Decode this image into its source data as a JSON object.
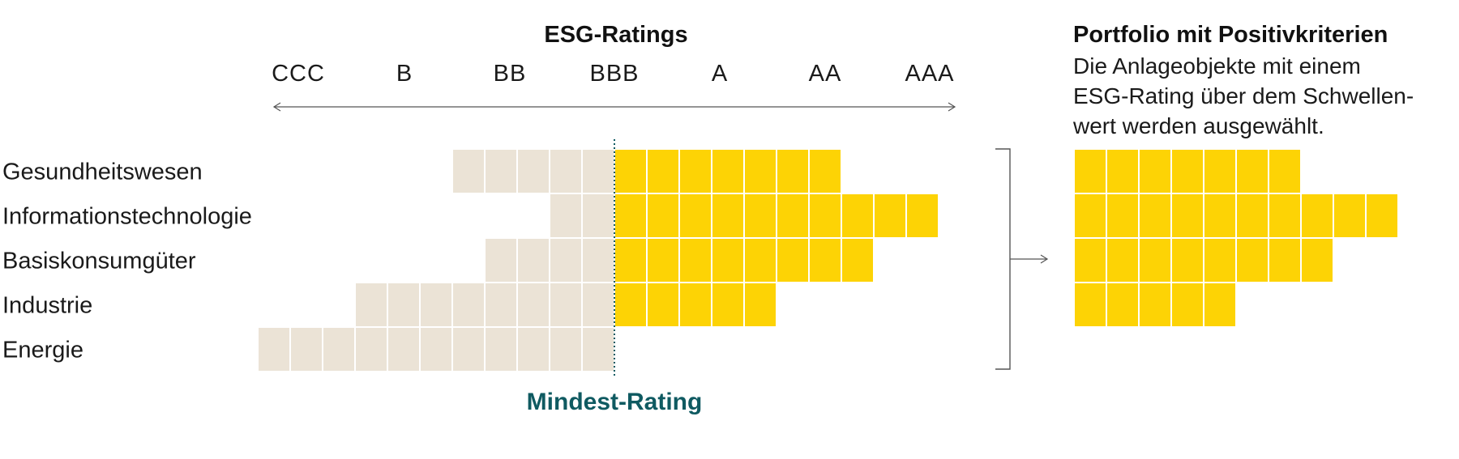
{
  "title": "ESG-Ratings",
  "ratings": [
    "CCC",
    "B",
    "BB",
    "BBB",
    "A",
    "AA",
    "AAA"
  ],
  "threshold_label": "Mindest-Rating",
  "portfolio": {
    "title": "Portfolio mit Positivkriterien",
    "description_lines": [
      "Die Anlageobjekte mit einem",
      "ESG-Rating über dem Schwellen-",
      "wert werden ausgewählt."
    ]
  },
  "colors": {
    "below_threshold": "#ebe3d6",
    "above_threshold": "#fdd305",
    "threshold_line": "#0f5a61",
    "threshold_label": "#0f5a61",
    "lines": "#555555"
  },
  "chart_data": {
    "type": "table",
    "sectors": [
      {
        "name": "Gesundheitswesen",
        "below": 5,
        "above": 7
      },
      {
        "name": "Informationstechnologie",
        "below": 2,
        "above": 10
      },
      {
        "name": "Basiskonsumgüter",
        "below": 4,
        "above": 8
      },
      {
        "name": "Industrie",
        "below": 8,
        "above": 5
      },
      {
        "name": "Energie",
        "below": 11,
        "above": 0
      }
    ],
    "portfolio_rows": [
      7,
      10,
      8,
      5
    ]
  }
}
